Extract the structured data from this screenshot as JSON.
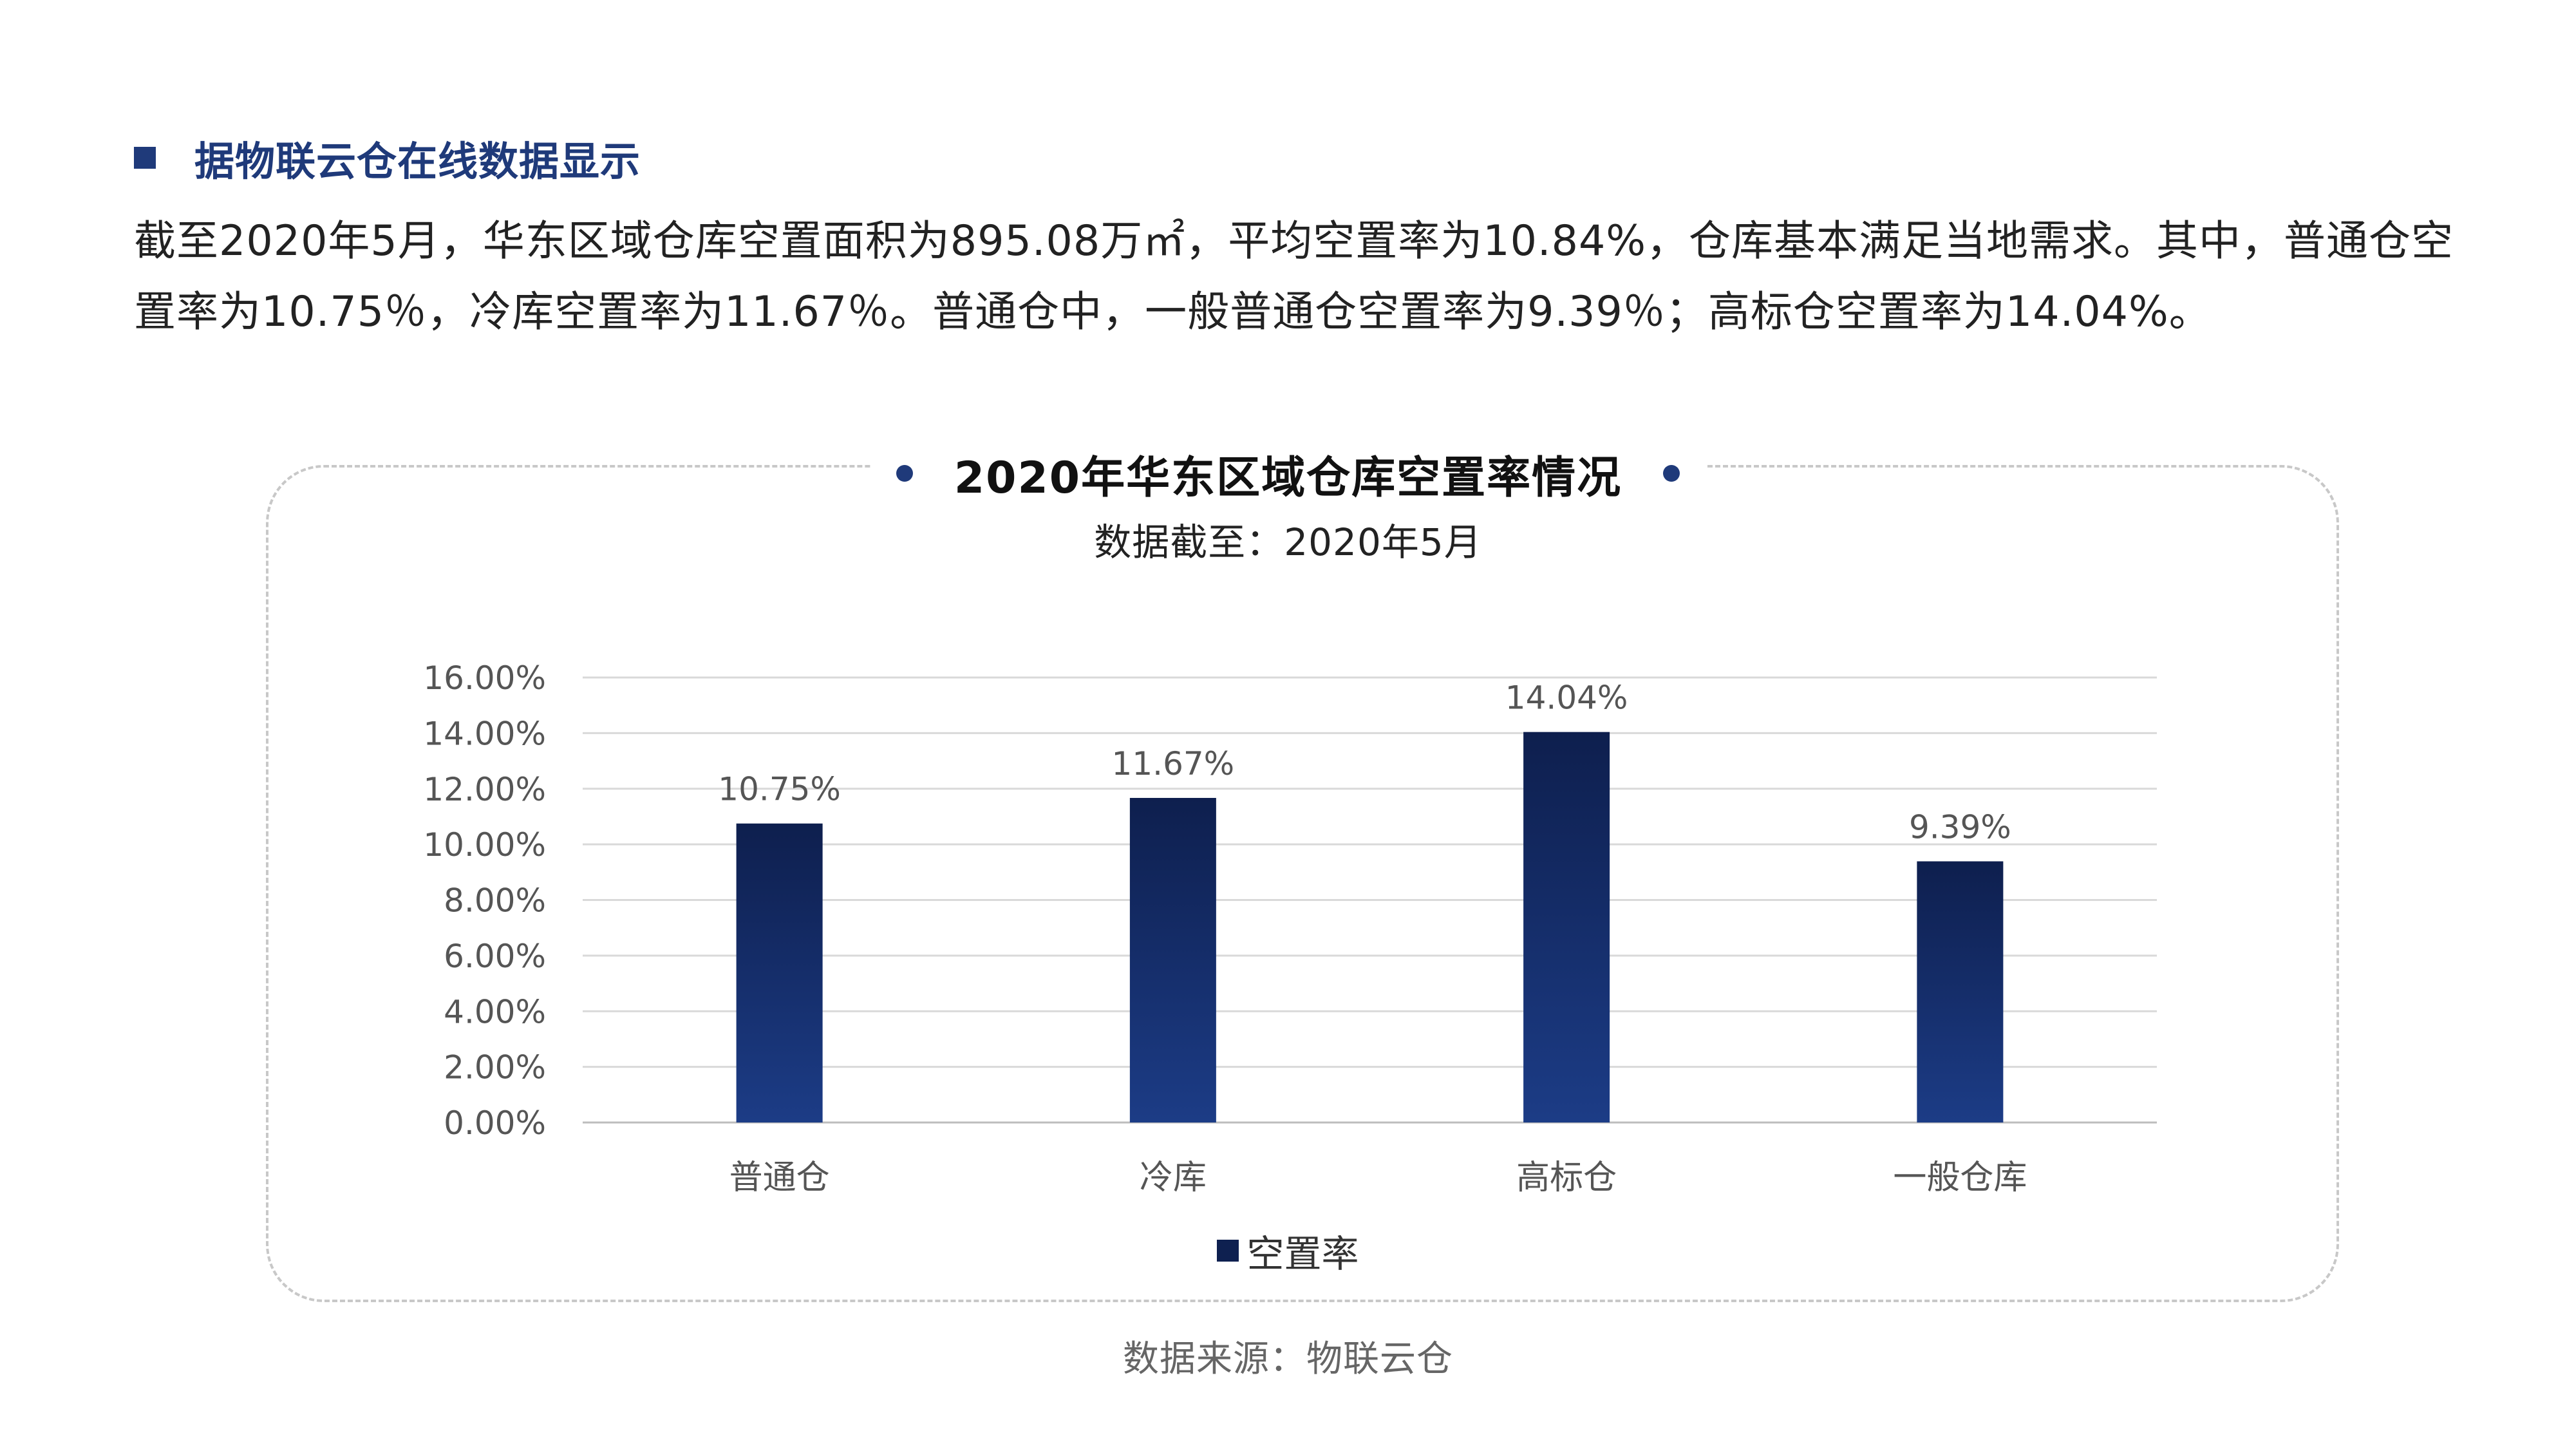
{
  "section": {
    "title": "据物联云仓在线数据显示"
  },
  "paragraph": "截至2020年5月，华东区域仓库空置面积为895.08万㎡，平均空置率为10.84%，仓库基本满足当地需求。其中，普通仓空置率为10.75％，冷库空置率为11.67％。普通仓中，一般普通仓空置率为9.39％；高标仓空置率为14.04%。",
  "chart_data": {
    "type": "bar",
    "title": "2020年华东区域仓库空置率情况",
    "subtitle": "数据截至：2020年5月",
    "categories": [
      "普通仓",
      "冷库",
      "高标仓",
      "一般仓库"
    ],
    "series": [
      {
        "name": "空置率",
        "values": [
          10.75,
          11.67,
          14.04,
          9.39
        ]
      }
    ],
    "data_labels": [
      "10.75%",
      "11.67%",
      "14.04%",
      "9.39%"
    ],
    "y_ticks": [
      "0.00%",
      "2.00%",
      "4.00%",
      "6.00%",
      "8.00%",
      "10.00%",
      "12.00%",
      "14.00%",
      "16.00%"
    ],
    "ylim": [
      0,
      16
    ],
    "grid": true,
    "legend_position": "bottom",
    "colors": {
      "bar_top": "#0e1f4e",
      "bar_bottom": "#1c3c86"
    }
  },
  "source": "数据来源：物联云仓"
}
